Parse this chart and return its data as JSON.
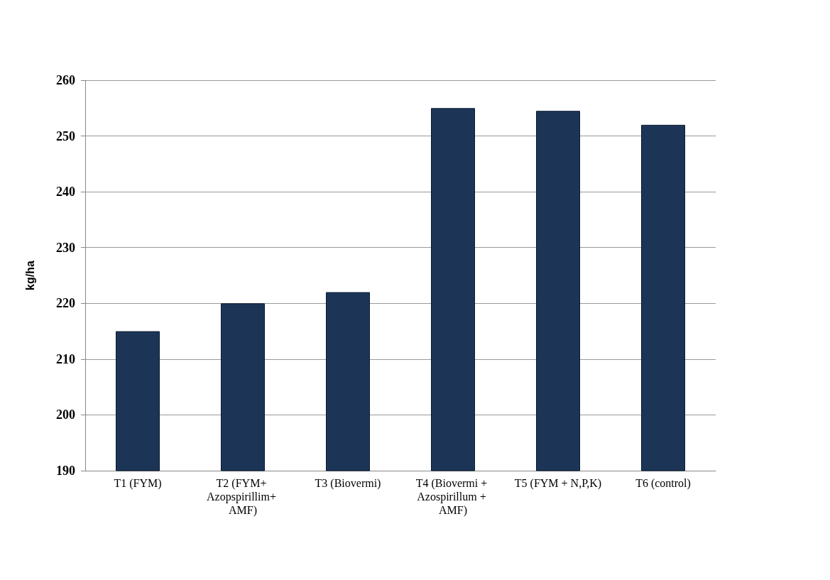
{
  "chart_data": {
    "type": "bar",
    "ylabel": "kg/ha",
    "categories": [
      "T1 (FYM)",
      "T2 (FYM+ Azopspirillim+ AMF)",
      "T3 (Biovermi)",
      "T4 (Biovermi + Azospirillum + AMF)",
      "T5 (FYM + N,P,K)",
      "T6 (control)"
    ],
    "values": [
      215,
      220,
      222,
      255,
      254.5,
      252
    ],
    "color": "#1c3557",
    "ylim": [
      190,
      260
    ],
    "yticks": [
      190,
      200,
      210,
      220,
      230,
      240,
      250,
      260
    ],
    "grid": "y"
  }
}
